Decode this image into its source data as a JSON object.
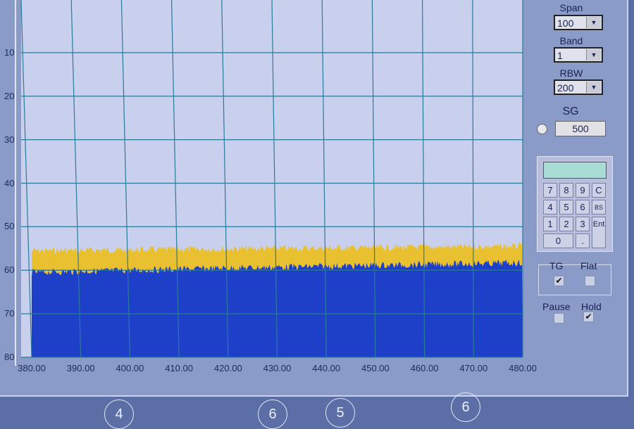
{
  "chart_data": {
    "type": "area",
    "xlim": [
      380,
      480
    ],
    "ylim": [
      0,
      80
    ],
    "y_inverted": true,
    "grid": true,
    "x_ticks": [
      "380.00",
      "390.00",
      "400.00",
      "410.00",
      "420.00",
      "430.00",
      "440.00",
      "450.00",
      "460.00",
      "470.00",
      "480.00"
    ],
    "y_ticks": [
      "10",
      "20",
      "30",
      "40",
      "50",
      "60",
      "70",
      "80"
    ],
    "series": [
      {
        "role": "hold",
        "color": "#e8c030",
        "x": [
          380,
          430,
          480
        ],
        "y": [
          55.5,
          55,
          54.5
        ]
      },
      {
        "role": "live",
        "color": "#1e40c8",
        "x": [
          380,
          430,
          480
        ],
        "y": [
          60.5,
          59.3,
          58.3
        ]
      }
    ],
    "colors": {
      "plot_bg": "#c9d0ee",
      "grid": "#2a7a9a"
    }
  },
  "controls": {
    "span": {
      "label": "Span",
      "value": "100"
    },
    "band": {
      "label": "Band",
      "value": "1"
    },
    "rbw": {
      "label": "RBW",
      "value": "200"
    },
    "sg": {
      "label": "SG",
      "value": "500"
    },
    "keypad": [
      "7",
      "8",
      "9",
      "C",
      "4",
      "5",
      "6",
      "BS",
      "1",
      "2",
      "3",
      "Ent",
      "0",
      "."
    ],
    "tg": {
      "label": "TG",
      "checked": true
    },
    "flat": {
      "label": "Flat",
      "checked": false
    },
    "pause": {
      "label": "Pause",
      "checked": false
    },
    "hold": {
      "label": "Hold",
      "checked": true
    }
  },
  "bezel_labels": [
    "4",
    "6",
    "5",
    "6"
  ]
}
